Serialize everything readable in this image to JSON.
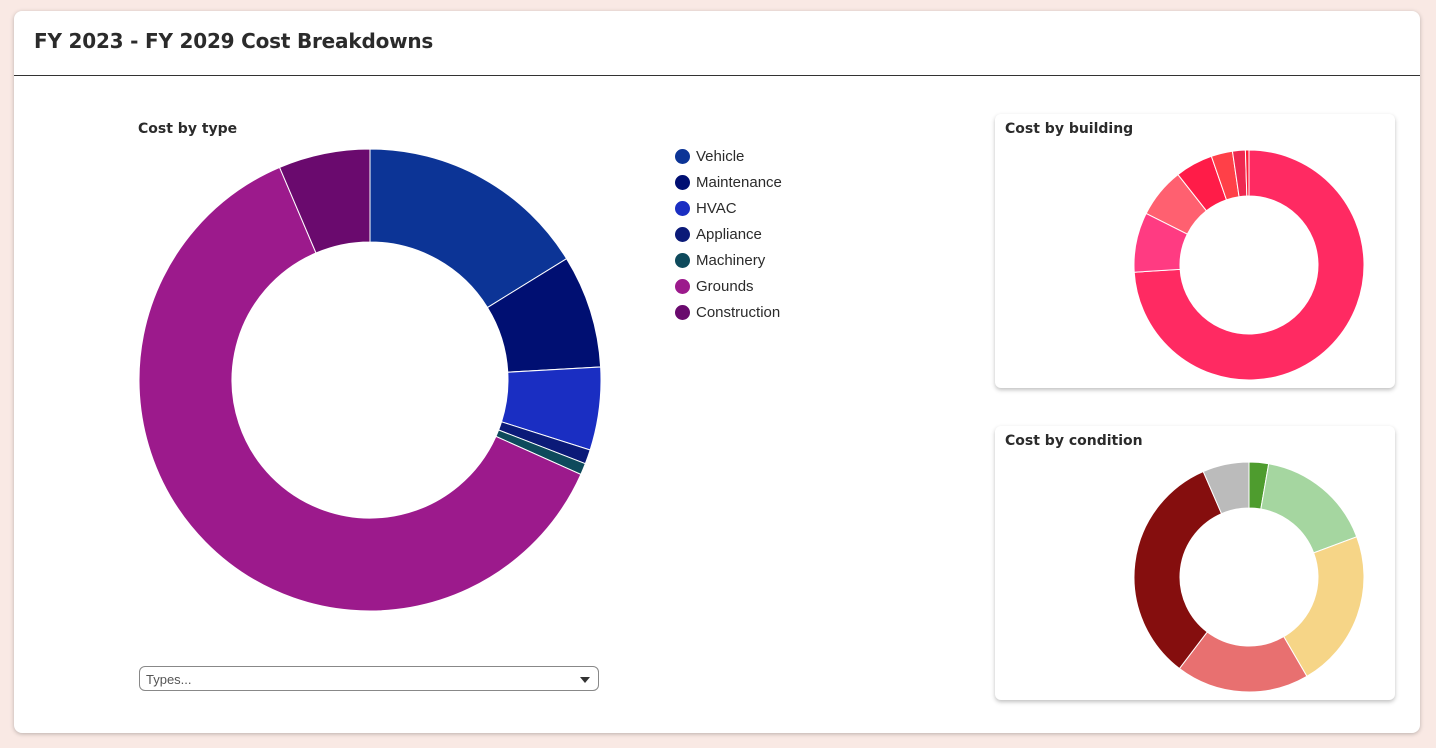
{
  "header": {
    "title": "FY 2023 - FY 2029 Cost Breakdowns"
  },
  "type_filter": {
    "placeholder": "Types..."
  },
  "chart_data": [
    {
      "type": "pie",
      "title": "Cost by type",
      "donut": true,
      "legend_position": "right",
      "labels": [
        "Vehicle",
        "Maintenance",
        "HVAC",
        "Appliance",
        "Machinery",
        "Grounds",
        "Construction"
      ],
      "values": [
        16.2,
        7.9,
        5.8,
        1.0,
        0.8,
        61.9,
        6.4
      ],
      "colors": [
        "#0c3496",
        "#000f72",
        "#1a2ec2",
        "#0b1a78",
        "#0e4a5c",
        "#9c1a8c",
        "#6a0a6e"
      ]
    },
    {
      "type": "pie",
      "title": "Cost by building",
      "donut": true,
      "values": [
        74.0,
        8.4,
        7.0,
        5.3,
        3.0,
        1.8,
        0.5
      ],
      "colors": [
        "#ff2a62",
        "#ff3b82",
        "#ff6070",
        "#ff1c48",
        "#ff4048",
        "#ee2850",
        "#ff1c36"
      ]
    },
    {
      "type": "pie",
      "title": "Cost by condition",
      "donut": true,
      "values": [
        2.4,
        14.5,
        19.5,
        16.4,
        29.0,
        5.7
      ],
      "colors": [
        "#4e9c2e",
        "#a5d6a0",
        "#f6d587",
        "#e87070",
        "#850e0e",
        "#bbbbbb"
      ]
    }
  ]
}
